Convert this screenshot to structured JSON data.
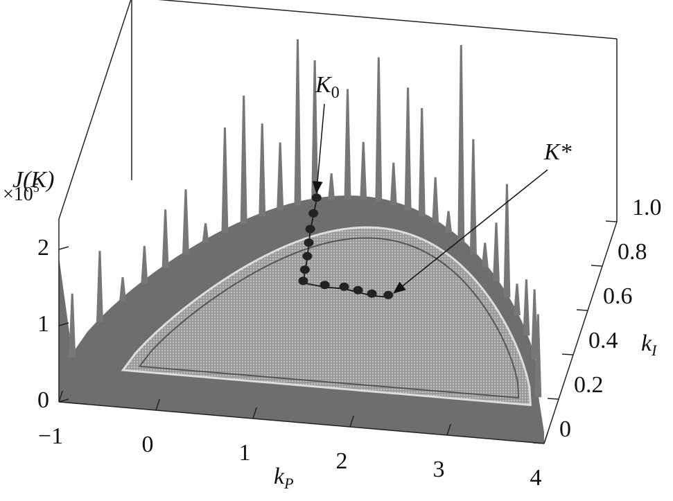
{
  "chart_data": {
    "type": "surface3d",
    "zlabel": "J(K)",
    "zscale": {
      "base": "×10",
      "superscript": "5"
    },
    "xlabel": {
      "base": "k",
      "subscript": "P"
    },
    "ylabel": {
      "base": "k",
      "subscript": "I"
    },
    "xlim": [
      -1,
      4
    ],
    "xticks": [
      {
        "value": -1,
        "label": "−1"
      },
      0,
      1,
      2,
      3,
      4
    ],
    "ylim": [
      0,
      1
    ],
    "yticks": [
      0,
      0.2,
      0.4,
      0.6,
      0.8,
      {
        "value": 1,
        "label": "1.0"
      }
    ],
    "zlim": [
      0,
      2.4
    ],
    "zticks": [
      0,
      1,
      2
    ],
    "path": {
      "x": [
        0.98,
        1.0,
        1.02,
        1.05,
        1.08,
        1.1,
        1.12,
        1.35,
        1.55,
        1.7,
        1.85,
        2.02
      ],
      "y": [
        0.9,
        0.83,
        0.76,
        0.7,
        0.64,
        0.58,
        0.53,
        0.52,
        0.52,
        0.51,
        0.5,
        0.5
      ],
      "color": "#222222"
    },
    "annotations": [
      {
        "text": "K",
        "subscript": "0"
      },
      {
        "text": "K*"
      }
    ]
  }
}
